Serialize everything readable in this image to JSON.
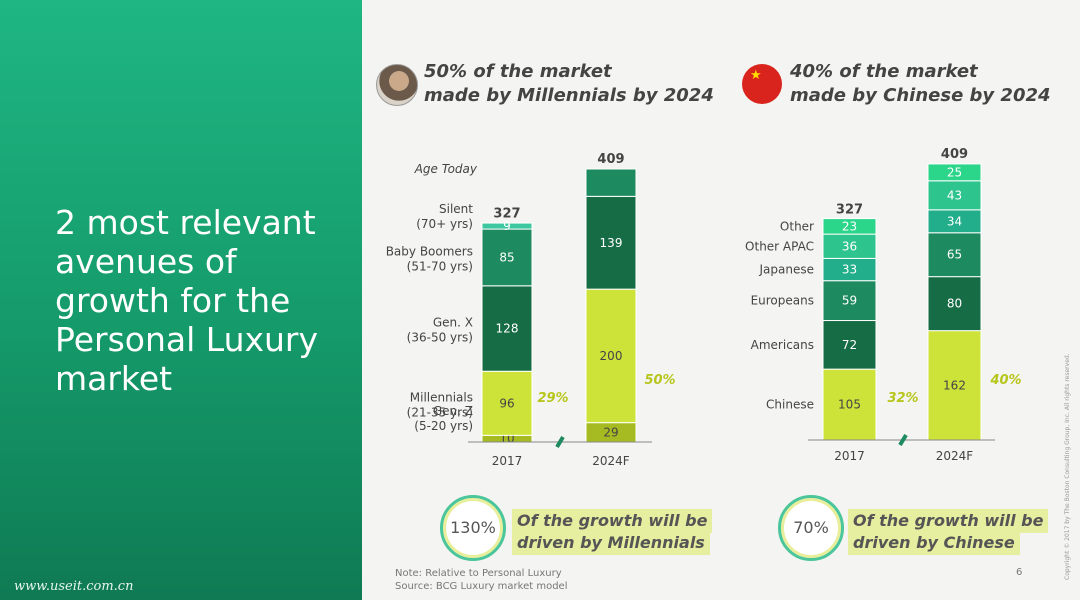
{
  "headline": "2 most relevant avenues of growth for the Personal Luxury market",
  "watermark": "www.useit.com.cn",
  "left_panel": {
    "subtitle_line1": "50% of the market",
    "subtitle_line2": "made by Millennials by 2024",
    "icon": "millennials-photo-icon",
    "bubble_value": "130%",
    "growth_line1": "Of the growth will be",
    "growth_line2": "driven by Millennials"
  },
  "right_panel": {
    "subtitle_line1": "40% of the market",
    "subtitle_line2": "made by Chinese by 2024",
    "icon": "china-flag-icon",
    "bubble_value": "70%",
    "growth_line1": "Of the growth will be",
    "growth_line2": "driven by Chinese"
  },
  "note": "Note: Relative to Personal Luxury",
  "source": "Source: BCG Luxury market model",
  "page_number": "6",
  "copyright": "Copyright © 2017 by The Boston Consulting Group, Inc. All rights reserved.",
  "colors": {
    "green_panel": "#18a877",
    "silent": "#3cc7a0",
    "boomers": "#1d8a5f",
    "genx": "#166c45",
    "millennials": "#cde33a",
    "genz": "#a6bb22",
    "other": "#2bd58a",
    "apac": "#2ec48d",
    "japanese": "#22ae8a"
  },
  "chart_data": [
    {
      "type": "bar",
      "stacked": true,
      "caption": "Age Today",
      "categories": [
        "2017",
        "2024F"
      ],
      "totals": [
        327,
        409
      ],
      "series": [
        {
          "name": "Gen. Z",
          "sublabel": "(5-20 yrs)",
          "values": [
            10,
            29
          ],
          "labels": [
            "10",
            "29"
          ],
          "color": "#a6bb22"
        },
        {
          "name": "Millennials",
          "sublabel": "(21-35 yrs)",
          "values": [
            96,
            200
          ],
          "labels": [
            "96",
            "200"
          ],
          "color": "#cde33a"
        },
        {
          "name": "Gen. X",
          "sublabel": "(36-50 yrs)",
          "values": [
            128,
            139
          ],
          "labels": [
            "128",
            "139"
          ],
          "color": "#166c45"
        },
        {
          "name": "Baby Boomers",
          "sublabel": "(51-70 yrs)",
          "values": [
            85,
            41
          ],
          "labels": [
            "85",
            ""
          ],
          "color": "#1d8a5f"
        },
        {
          "name": "Silent",
          "sublabel": "(70+ yrs)",
          "values": [
            9,
            0
          ],
          "labels": [
            "9",
            ""
          ],
          "color": "#3cc7a0"
        }
      ],
      "share_labels": [
        "29%",
        "50%"
      ]
    },
    {
      "type": "bar",
      "stacked": true,
      "categories": [
        "2017",
        "2024F"
      ],
      "totals": [
        327,
        409
      ],
      "series": [
        {
          "name": "Chinese",
          "values": [
            105,
            162
          ],
          "labels": [
            "105",
            "162"
          ],
          "color": "#cde33a"
        },
        {
          "name": "Americans",
          "values": [
            72,
            80
          ],
          "labels": [
            "72",
            "80"
          ],
          "color": "#166c45"
        },
        {
          "name": "Europeans",
          "values": [
            59,
            65
          ],
          "labels": [
            "59",
            "65"
          ],
          "color": "#1d8a5f"
        },
        {
          "name": "Japanese",
          "values": [
            33,
            34
          ],
          "labels": [
            "33",
            "34"
          ],
          "color": "#22ae8a"
        },
        {
          "name": "Other APAC",
          "values": [
            36,
            43
          ],
          "labels": [
            "36",
            "43"
          ],
          "color": "#2ec48d"
        },
        {
          "name": "Other",
          "values": [
            23,
            25
          ],
          "labels": [
            "23",
            "25"
          ],
          "color": "#2bd58a"
        }
      ],
      "share_labels": [
        "32%",
        "40%"
      ]
    }
  ]
}
